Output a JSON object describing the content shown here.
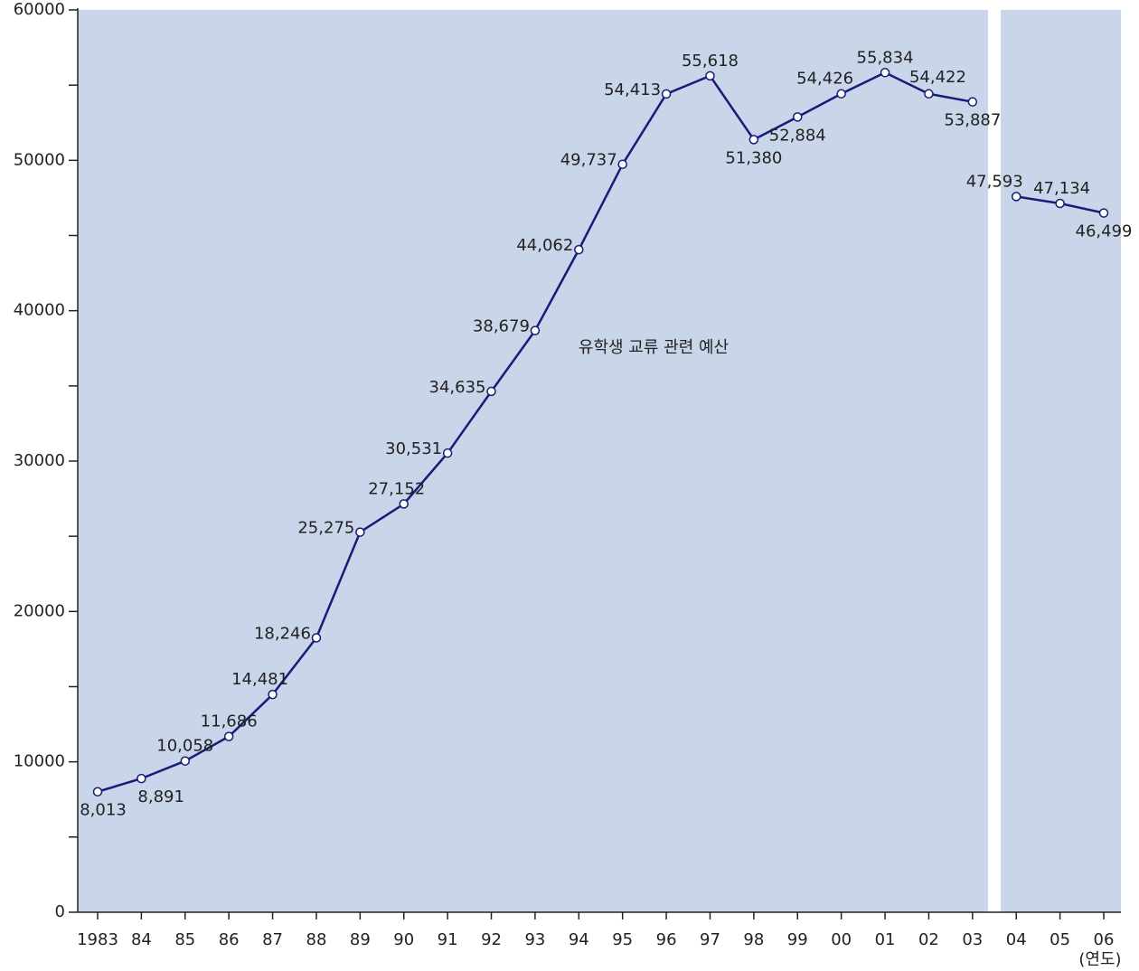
{
  "chart_data": {
    "type": "line",
    "x_label": "(연도)",
    "categories": [
      "1983",
      "84",
      "85",
      "86",
      "87",
      "88",
      "89",
      "90",
      "91",
      "92",
      "93",
      "94",
      "95",
      "96",
      "97",
      "98",
      "99",
      "00",
      "01",
      "02",
      "03",
      "04",
      "05",
      "06"
    ],
    "series": [
      {
        "name": "유학생 교류 관련 예산",
        "color": "#1a1a7a",
        "values": [
          8013,
          8891,
          10058,
          11686,
          14481,
          18246,
          25275,
          27152,
          30531,
          34635,
          38679,
          44062,
          49737,
          54413,
          55618,
          51380,
          52884,
          54426,
          55834,
          54422,
          53887,
          null,
          null,
          null
        ],
        "value_labels": [
          "8,013",
          "8,891",
          "10,058",
          "11,686",
          "14,481",
          "18,246",
          "25,275",
          "27,152",
          "30,531",
          "34,635",
          "38,679",
          "44,062",
          "49,737",
          "54,413",
          "55,618",
          "51,380",
          "52,884",
          "54,426",
          "55,834",
          "54,422",
          "53,887",
          null,
          null,
          null
        ]
      },
      {
        "color": "#1a1a7a",
        "values": [
          null,
          null,
          null,
          null,
          null,
          null,
          null,
          null,
          null,
          null,
          null,
          null,
          null,
          null,
          null,
          null,
          null,
          null,
          null,
          null,
          null,
          47593,
          47134,
          46499
        ],
        "value_labels": [
          null,
          null,
          null,
          null,
          null,
          null,
          null,
          null,
          null,
          null,
          null,
          null,
          null,
          null,
          null,
          null,
          null,
          null,
          null,
          null,
          null,
          "47,593",
          "47,134",
          "46,499"
        ]
      }
    ],
    "ylim": [
      0,
      60000
    ],
    "yticks": [
      0,
      10000,
      20000,
      30000,
      40000,
      50000,
      60000
    ],
    "yticks_minor": [
      5000,
      15000,
      25000,
      35000,
      45000,
      55000
    ],
    "background": "#c9d5e8"
  }
}
